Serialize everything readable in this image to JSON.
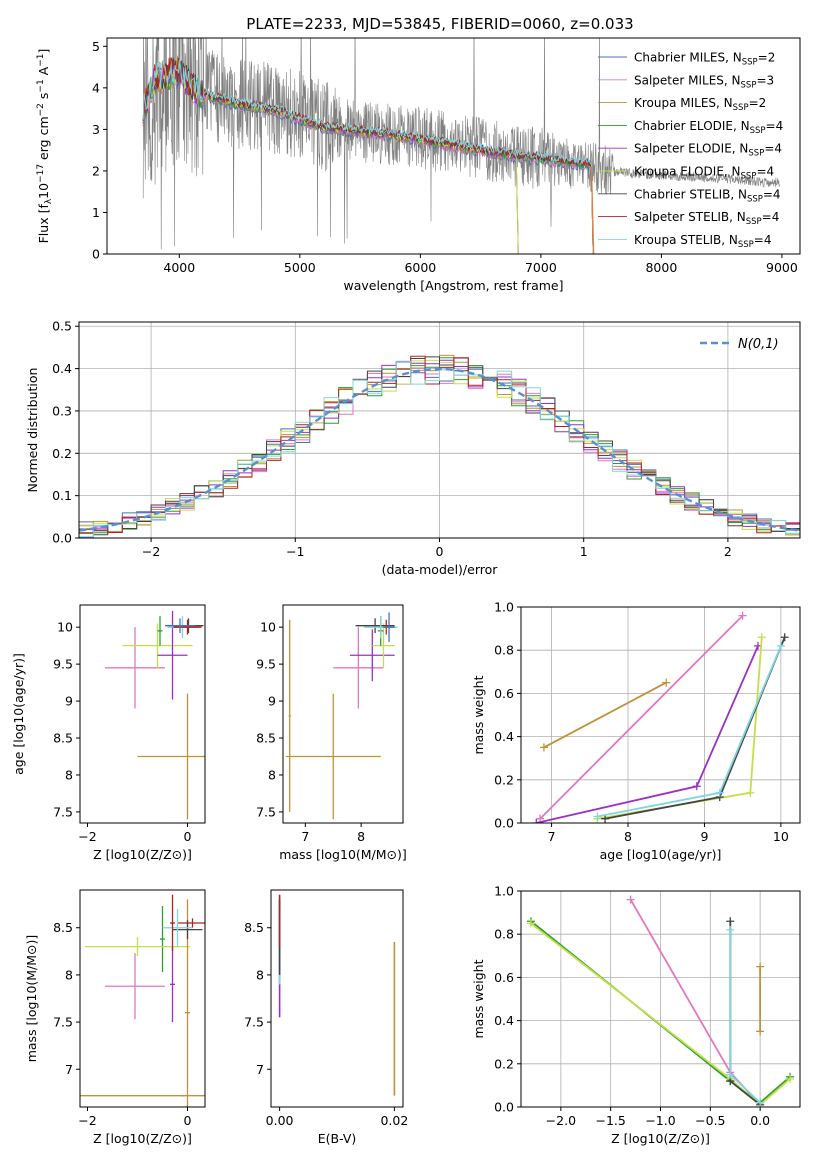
{
  "figure_title": "PLATE=2233, MJD=53845, FIBERID=0060, z=0.033",
  "models": [
    {
      "name": "Chabrier MILES",
      "nssp": "2",
      "color": "#4c72b0"
    },
    {
      "name": "Salpeter MILES",
      "nssp": "3",
      "color": "#e377c2"
    },
    {
      "name": "Kroupa MILES",
      "nssp": "2",
      "color": "#c0913a"
    },
    {
      "name": "Chabrier ELODIE",
      "nssp": "4",
      "color": "#2ca02c"
    },
    {
      "name": "Salpeter ELODIE",
      "nssp": "4",
      "color": "#9b30c8"
    },
    {
      "name": "Kroupa ELODIE",
      "nssp": "4",
      "color": "#c2e04a"
    },
    {
      "name": "Chabrier STELIB",
      "nssp": "4",
      "color": "#444444"
    },
    {
      "name": "Salpeter STELIB",
      "nssp": "4",
      "color": "#b22222"
    },
    {
      "name": "Kroupa STELIB",
      "nssp": "4",
      "color": "#7fd6df"
    }
  ],
  "colors": {
    "data": "#808080",
    "orange": "#e07b39",
    "normal": "#5a8fd6",
    "grid": "#b0b0b0"
  },
  "chart_data": [
    {
      "type": "line",
      "id": "spectrum",
      "xlabel": "wavelength [Angstrom, rest frame]",
      "ylabel": "Flux [f_λ 10^-17 erg cm^-2 s^-1 A^-1]",
      "xlim": [
        3400,
        9150
      ],
      "ylim": [
        0,
        5.2
      ],
      "xticks": [
        4000,
        5000,
        6000,
        7000,
        8000,
        9000
      ],
      "yticks": [
        0,
        1,
        2,
        3,
        4,
        5
      ],
      "series": [
        {
          "role": "data",
          "x": [
            3700,
            3800,
            3900,
            4000,
            4100,
            4300,
            4500,
            4800,
            5000,
            5200,
            5500,
            5800,
            6000,
            6200,
            6500,
            6800,
            7000,
            7200,
            7400,
            7700,
            8000,
            8300,
            8600,
            8900
          ],
          "y": [
            3.2,
            3.9,
            4.2,
            4.4,
            4.1,
            3.8,
            3.6,
            3.5,
            3.3,
            3.1,
            2.95,
            2.85,
            2.8,
            2.7,
            2.55,
            2.35,
            2.3,
            2.2,
            2.1,
            1.95,
            1.9,
            1.85,
            1.8,
            1.72
          ]
        },
        {
          "role": "models",
          "x": [
            3700,
            3800,
            3900,
            4000,
            4100,
            4300,
            4500,
            4800,
            5000,
            5200,
            5500,
            5800,
            6000,
            6200,
            6500,
            6800,
            7000,
            7200,
            7400
          ],
          "y": [
            3.5,
            4.2,
            4.3,
            4.4,
            4.0,
            3.75,
            3.6,
            3.45,
            3.25,
            3.05,
            2.95,
            2.85,
            2.75,
            2.65,
            2.5,
            2.35,
            2.3,
            2.2,
            2.15
          ]
        }
      ]
    },
    {
      "type": "line",
      "id": "residuals",
      "xlabel": "(data-model)/error",
      "ylabel": "Normed distribution",
      "xlim": [
        -2.5,
        2.5
      ],
      "ylim": [
        0,
        0.51
      ],
      "xticks": [
        -2,
        -1,
        0,
        1,
        2
      ],
      "yticks": [
        0.0,
        0.1,
        0.2,
        0.3,
        0.4,
        0.5
      ],
      "legend": "N(0,1)",
      "bin_width": 0.1,
      "series": [
        {
          "name": "N(0,1)",
          "function": "gaussian",
          "mean": 0,
          "sigma": 1
        }
      ]
    },
    {
      "type": "scatter",
      "id": "age-vs-Z",
      "xlabel": "Z [log10(Z/Z⊙)]",
      "ylabel": "age  [log10(age/yr)]",
      "xlim": [
        -2.15,
        0.35
      ],
      "ylim": [
        7.35,
        10.3
      ],
      "xticks": [
        -2,
        0
      ],
      "yticks": [
        7.5,
        8.0,
        8.5,
        9.0,
        9.5,
        10.0
      ]
    },
    {
      "type": "scatter",
      "id": "age-vs-mass",
      "xlabel": "mass [log10(M/M⊙)]",
      "ylabel": "",
      "xlim": [
        6.6,
        8.75
      ],
      "ylim": [
        7.35,
        10.3
      ],
      "xticks": [
        7,
        8
      ],
      "yticks": [
        7.5,
        8.0,
        8.5,
        9.0,
        9.5,
        10.0
      ]
    },
    {
      "type": "line",
      "id": "massweight-vs-age",
      "xlabel": "age  [log10(age/yr)]",
      "ylabel": "mass weight",
      "xlim": [
        6.6,
        10.25
      ],
      "ylim": [
        0,
        1.0
      ],
      "xticks": [
        7,
        8,
        9,
        10
      ],
      "yticks": [
        0.0,
        0.2,
        0.4,
        0.6,
        0.8,
        1.0
      ],
      "series": [
        {
          "model": 1,
          "x": [
            6.85,
            9.5
          ],
          "y": [
            0.02,
            0.96
          ]
        },
        {
          "model": 2,
          "x": [
            6.9,
            8.5
          ],
          "y": [
            0.35,
            0.65
          ]
        },
        {
          "model": 4,
          "x": [
            6.8,
            8.9,
            9.7
          ],
          "y": [
            0.0,
            0.17,
            0.82
          ]
        },
        {
          "model": 5,
          "x": [
            7.6,
            9.6,
            9.75
          ],
          "y": [
            0.02,
            0.14,
            0.86
          ]
        },
        {
          "model": 6,
          "x": [
            7.7,
            9.2,
            10.05
          ],
          "y": [
            0.02,
            0.12,
            0.86
          ]
        },
        {
          "model": 8,
          "x": [
            7.6,
            9.2,
            10.0
          ],
          "y": [
            0.03,
            0.14,
            0.82
          ]
        }
      ]
    },
    {
      "type": "scatter",
      "id": "mass-vs-Z",
      "xlabel": "Z [log10(Z/Z⊙)]",
      "ylabel": "mass [log10(M/M⊙)]",
      "xlim": [
        -2.15,
        0.35
      ],
      "ylim": [
        6.6,
        8.9
      ],
      "xticks": [
        -2,
        0
      ],
      "yticks": [
        7.0,
        7.5,
        8.0,
        8.5
      ]
    },
    {
      "type": "scatter",
      "id": "mass-vs-ebv",
      "xlabel": "E(B-V)",
      "ylabel": "",
      "xlim": [
        -0.0015,
        0.0215
      ],
      "ylim": [
        6.6,
        8.9
      ],
      "xticks": [
        0.0,
        0.02
      ],
      "yticks": [
        7.0,
        7.5,
        8.0,
        8.5
      ]
    },
    {
      "type": "line",
      "id": "massweight-vs-Z",
      "xlabel": "Z [log10(Z/Z⊙)]",
      "ylabel": "mass weight",
      "xlim": [
        -2.4,
        0.4
      ],
      "ylim": [
        0,
        1.0
      ],
      "xticks": [
        -2.0,
        -1.5,
        -1.0,
        -0.5,
        0.0
      ],
      "yticks": [
        0.0,
        0.2,
        0.4,
        0.6,
        0.8,
        1.0
      ],
      "series": [
        {
          "model": 1,
          "x": [
            -1.3,
            -0.3,
            0.0
          ],
          "y": [
            0.96,
            0.16,
            0.01
          ]
        },
        {
          "model": 2,
          "x": [
            0.0,
            0.0
          ],
          "y": [
            0.35,
            0.65
          ]
        },
        {
          "model": 3,
          "x": [
            -2.3,
            -0.3,
            0.0,
            0.3
          ],
          "y": [
            0.86,
            0.12,
            0.02,
            0.14
          ]
        },
        {
          "model": 5,
          "x": [
            -2.3,
            -0.3,
            0.0,
            0.3
          ],
          "y": [
            0.85,
            0.13,
            0.01,
            0.13
          ]
        },
        {
          "model": 6,
          "x": [
            -0.3,
            -0.3,
            0.0
          ],
          "y": [
            0.86,
            0.12,
            0.01
          ]
        },
        {
          "model": 8,
          "x": [
            -0.3,
            -0.3,
            0.0
          ],
          "y": [
            0.82,
            0.15,
            0.02
          ]
        }
      ]
    }
  ]
}
